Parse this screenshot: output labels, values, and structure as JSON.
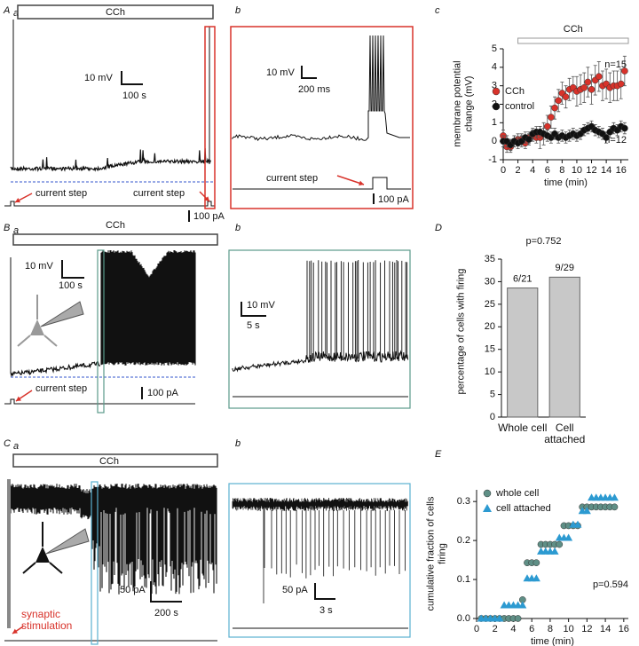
{
  "chart_data": [
    {
      "type": "scatter",
      "label": "c",
      "bar_label": "CCh",
      "bar_span": [
        2,
        17
      ],
      "x_label": "time (min)",
      "y_label": "membrane potential change (mV)",
      "x": [
        0,
        0.5,
        1,
        1.5,
        2,
        2.5,
        3,
        3.5,
        4,
        4.5,
        5,
        5.5,
        6,
        6.5,
        7,
        7.5,
        8,
        8.5,
        9,
        9.5,
        10,
        10.5,
        11,
        11.5,
        12,
        12.5,
        13,
        13.5,
        14,
        14.5,
        15,
        15.5,
        16,
        16.5
      ],
      "series": [
        {
          "name": "CCh",
          "color": "#d8322a",
          "marker": "circle",
          "values": [
            0.3,
            -0.3,
            -0.3,
            0,
            0.1,
            0.1,
            -0.1,
            0.2,
            0.3,
            0.2,
            0.2,
            0.4,
            0.8,
            1.3,
            1.8,
            2.2,
            2.6,
            2.4,
            2.8,
            2.9,
            2.7,
            2.8,
            2.9,
            3.2,
            2.8,
            3.3,
            3.5,
            3.0,
            3.1,
            2.9,
            3.0,
            3.0,
            3.1,
            3.8
          ],
          "errors": [
            0.3,
            0.3,
            0.3,
            0.3,
            0.3,
            0.3,
            0.3,
            0.3,
            0.3,
            0.3,
            0.6,
            0.6,
            0.6,
            0.6,
            0.6,
            0.6,
            0.6,
            0.6,
            0.6,
            0.6,
            0.8,
            0.8,
            0.8,
            0.8,
            0.8,
            0.8,
            0.8,
            0.8,
            0.8,
            0.8,
            0.8,
            0.8,
            0.8,
            0.8
          ]
        },
        {
          "name": "control",
          "color": "#111111",
          "marker": "circle",
          "values": [
            0,
            0,
            -0.2,
            0,
            -0.1,
            0,
            0.2,
            0.1,
            0.4,
            0.5,
            0.5,
            0.4,
            0.3,
            0.2,
            0.4,
            0.2,
            0.3,
            0.2,
            0.3,
            0.4,
            0.3,
            0.4,
            0.6,
            0.7,
            0.8,
            0.6,
            0.5,
            0.4,
            0.2,
            0.5,
            0.7,
            0.6,
            0.8,
            0.7
          ],
          "errors": [
            0.3,
            0.3,
            0.3,
            0.3,
            0.3,
            0.3,
            0.3,
            0.3,
            0.3,
            0.3,
            0.3,
            0.3,
            0.3,
            0.3,
            0.3,
            0.3,
            0.3,
            0.3,
            0.3,
            0.3,
            0.3,
            0.3,
            0.3,
            0.3,
            0.3,
            0.3,
            0.3,
            0.3,
            0.3,
            0.3,
            0.3,
            0.3,
            0.3,
            0.3
          ]
        }
      ],
      "annotations": [
        "n=15",
        "n=12"
      ],
      "xlim": [
        0,
        17
      ],
      "xticks": [
        0,
        2,
        4,
        6,
        8,
        10,
        12,
        14,
        16
      ],
      "ylim": [
        -1,
        5
      ],
      "yticks": [
        -1,
        0,
        1,
        2,
        3,
        4,
        5
      ],
      "legend": "upper left"
    },
    {
      "type": "bar",
      "label": "D",
      "subtitle": "p=0.752",
      "y_label": "percentage of cells with firing",
      "categories": [
        "Whole cell",
        "Cell attached"
      ],
      "values": [
        28.6,
        31.0
      ],
      "color": "#c8c8c8",
      "annotations": [
        "6/21",
        "9/29"
      ],
      "annotation_colors": [
        "#5f8f86",
        "#2c9ad1"
      ],
      "ylim": [
        0,
        35
      ],
      "yticks": [
        0,
        5,
        10,
        15,
        20,
        25,
        30,
        35
      ]
    },
    {
      "type": "scatter",
      "label": "E",
      "annotation": "p=0.594",
      "x_label": "time (min)",
      "y_label": "cumulative fraction of cells firing",
      "x": [
        0.5,
        1,
        1.5,
        2,
        2.5,
        3,
        3.5,
        4,
        4.5,
        5,
        5.5,
        6,
        6.5,
        7,
        7.5,
        8,
        8.5,
        9,
        9.5,
        10,
        10.5,
        11,
        11.5,
        12,
        12.5,
        13,
        13.5,
        14,
        14.5,
        15
      ],
      "series": [
        {
          "name": "whole cell",
          "color": "#5f8f86",
          "marker": "circle",
          "values": [
            0,
            0,
            0,
            0,
            0,
            0,
            0,
            0,
            0,
            0.048,
            0.143,
            0.143,
            0.143,
            0.19,
            0.19,
            0.19,
            0.19,
            0.19,
            0.238,
            0.238,
            0.238,
            0.238,
            0.286,
            0.286,
            0.286,
            0.286,
            0.286,
            0.286,
            0.286,
            0.286
          ]
        },
        {
          "name": "cell attached",
          "color": "#2c9ad1",
          "marker": "triangle",
          "values": [
            0,
            0,
            0,
            0,
            0,
            0.034,
            0.034,
            0.034,
            0.034,
            0.034,
            0.103,
            0.103,
            0.103,
            0.172,
            0.172,
            0.172,
            0.172,
            0.207,
            0.207,
            0.207,
            0.241,
            0.241,
            0.276,
            0.276,
            0.31,
            0.31,
            0.31,
            0.31,
            0.31,
            0.31
          ]
        }
      ],
      "xlim": [
        0,
        16.5
      ],
      "xticks": [
        0,
        2,
        4,
        6,
        8,
        10,
        12,
        14,
        16
      ],
      "ylim": [
        0,
        0.33
      ],
      "yticks": [
        {
          "value": 0,
          "label": "0.0"
        },
        0.1,
        0.2,
        0.3
      ],
      "legend": "upper left"
    }
  ],
  "panels": {
    "Aa": {
      "label": "A",
      "sub": "a",
      "bar": "CCh",
      "scale_v": "10 mV",
      "scale_t": "100 s",
      "scale_i": "100 pA",
      "note1": "current step",
      "note2": "current step"
    },
    "Ab": {
      "label": "b",
      "scale_v": "10 mV",
      "scale_t": "200 ms",
      "scale_i": "100 pA",
      "note": "current step"
    },
    "Ba": {
      "label": "B",
      "sub": "a",
      "bar": "CCh",
      "scale_v": "10 mV",
      "scale_t": "100 s",
      "scale_i": "100 pA",
      "note": "current step"
    },
    "Bb": {
      "label": "b",
      "scale_v": "10 mV",
      "scale_t": "5 s"
    },
    "Ca": {
      "label": "C",
      "sub": "a",
      "bar": "CCh",
      "scale_i": "50 pA",
      "scale_t": "200 s",
      "note": "synaptic stimulation"
    },
    "Cb": {
      "label": "b",
      "scale_i": "50 pA",
      "scale_t": "3 s"
    }
  }
}
